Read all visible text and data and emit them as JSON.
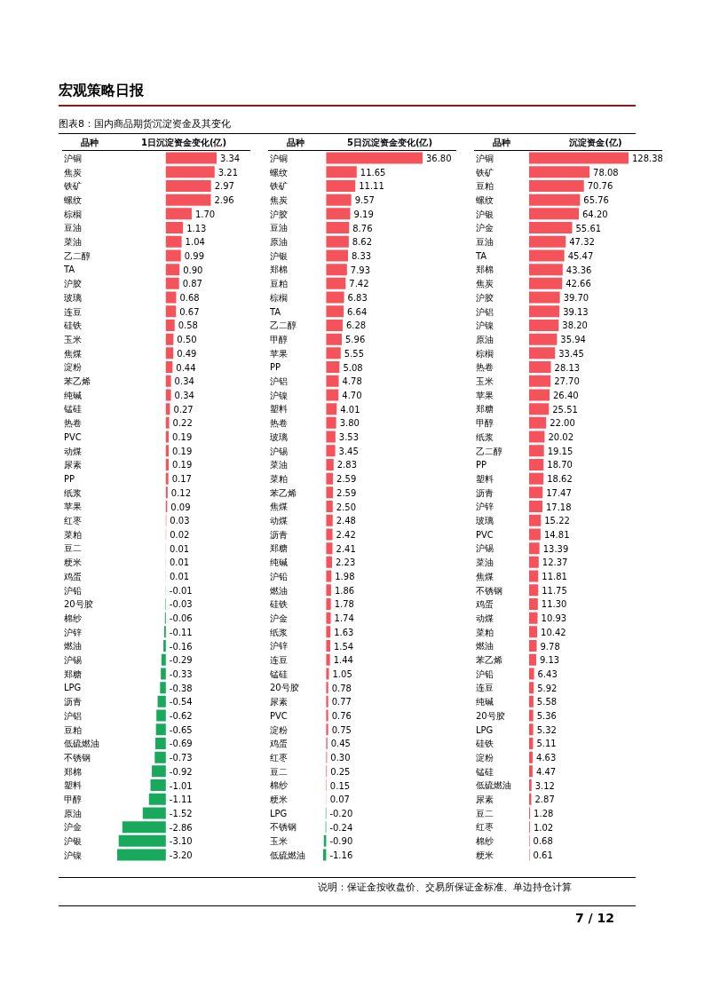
{
  "chart_data": [
    {
      "type": "bar",
      "orientation": "horizontal",
      "title": "1日沉淀资金变化(亿)",
      "ylabel": "品种",
      "annotations": [
        "宏观策略日报",
        "图表8：国内商品期货沉淀资金及其变化"
      ],
      "categories": [
        "沪铜",
        "焦炭",
        "铁矿",
        "螺纹",
        "棕榈",
        "豆油",
        "菜油",
        "乙二醇",
        "TA",
        "沪胶",
        "玻璃",
        "连豆",
        "硅铁",
        "玉米",
        "焦煤",
        "淀粉",
        "苯乙烯",
        "纯碱",
        "锰硅",
        "热卷",
        "PVC",
        "动煤",
        "尿素",
        "PP",
        "纸浆",
        "苹果",
        "红枣",
        "菜粕",
        "豆二",
        "粳米",
        "鸡蛋",
        "沪铅",
        "20号胶",
        "棉纱",
        "沪锌",
        "燃油",
        "沪锡",
        "郑糖",
        "LPG",
        "沥青",
        "沪铝",
        "豆粕",
        "低硫燃油",
        "不锈钢",
        "郑棉",
        "塑料",
        "甲醇",
        "原油",
        "沪金",
        "沪银",
        "沪镍"
      ],
      "values": [
        3.34,
        3.21,
        2.97,
        2.96,
        1.7,
        1.13,
        1.04,
        0.99,
        0.9,
        0.87,
        0.68,
        0.67,
        0.58,
        0.5,
        0.49,
        0.44,
        0.34,
        0.34,
        0.27,
        0.22,
        0.19,
        0.19,
        0.19,
        0.17,
        0.12,
        0.09,
        0.03,
        0.02,
        0.01,
        0.01,
        0.01,
        -0.01,
        -0.03,
        -0.06,
        -0.11,
        -0.16,
        -0.29,
        -0.33,
        -0.38,
        -0.54,
        -0.62,
        -0.65,
        -0.69,
        -0.73,
        -0.92,
        -1.01,
        -1.11,
        -1.52,
        -2.86,
        -3.1,
        -3.2
      ],
      "value_labels": [
        "3.34",
        "3.21",
        "2.97",
        "2.96",
        "1.70",
        "1.13",
        "1.04",
        "0.99",
        "0.90",
        "0.87",
        "0.68",
        "0.67",
        "0.58",
        "0.50",
        "0.49",
        "0.44",
        "0.34",
        "0.34",
        "0.27",
        "0.22",
        "0.19",
        "0.19",
        "0.19",
        "0.17",
        "0.12",
        "0.09",
        "0.03",
        "0.02",
        "0.01",
        "0.01",
        "0.01",
        "-0.01",
        "-0.03",
        "-0.06",
        "-0.11",
        "-0.16",
        "-0.29",
        "-0.33",
        "-0.38",
        "-0.54",
        "-0.62",
        "-0.65",
        "-0.69",
        "-0.73",
        "-0.92",
        "-1.01",
        "-1.11",
        "-1.52",
        "-2.86",
        "-3.10",
        "-3.20"
      ],
      "colors": [
        "#f4535b",
        "#f4535b",
        "#f4535b",
        "#f4535b",
        "#f4535b",
        "#f4535b",
        "#f4535b",
        "#f4535b",
        "#f4535b",
        "#f4535b",
        "#f4535b",
        "#f4535b",
        "#f4535b",
        "#f4535b",
        "#f4535b",
        "#f4535b",
        "#f4535b",
        "#f4535b",
        "#f4535b",
        "#f4535b",
        "#f4535b",
        "#f4535b",
        "#f4535b",
        "#f4535b",
        "#f4535b",
        "#f4535b",
        "#f4535b",
        "#f4535b",
        "#f4535b",
        "#f4535b",
        "#f4535b",
        "#19a95c",
        "#19a95c",
        "#19a95c",
        "#19a95c",
        "#19a95c",
        "#19a95c",
        "#19a95c",
        "#19a95c",
        "#19a95c",
        "#19a95c",
        "#19a95c",
        "#19a95c",
        "#19a95c",
        "#19a95c",
        "#19a95c",
        "#19a95c",
        "#19a95c",
        "#19a95c",
        "#19a95c",
        "#19a95c"
      ]
    },
    {
      "type": "bar",
      "orientation": "horizontal",
      "title": "5日沉淀资金变化(亿)",
      "ylabel": "品种",
      "categories": [
        "沪铜",
        "螺纹",
        "铁矿",
        "焦炭",
        "沪胶",
        "豆油",
        "原油",
        "沪银",
        "郑棉",
        "豆粕",
        "棕榈",
        "TA",
        "乙二醇",
        "甲醇",
        "苹果",
        "PP",
        "沪铝",
        "沪镍",
        "塑料",
        "热卷",
        "玻璃",
        "沪锡",
        "菜油",
        "菜粕",
        "苯乙烯",
        "焦煤",
        "动煤",
        "沥青",
        "郑糖",
        "纯碱",
        "沪铅",
        "燃油",
        "硅铁",
        "沪金",
        "纸浆",
        "沪锌",
        "连豆",
        "锰硅",
        "20号胶",
        "尿素",
        "PVC",
        "淀粉",
        "鸡蛋",
        "红枣",
        "豆二",
        "棉纱",
        "粳米",
        "LPG",
        "不锈钢",
        "玉米",
        "低硫燃油"
      ],
      "values": [
        36.8,
        11.65,
        11.11,
        9.57,
        9.19,
        8.76,
        8.62,
        8.33,
        7.93,
        7.42,
        6.83,
        6.64,
        6.28,
        5.96,
        5.55,
        5.08,
        4.78,
        4.7,
        4.01,
        3.8,
        3.53,
        3.45,
        2.83,
        2.59,
        2.59,
        2.5,
        2.48,
        2.42,
        2.41,
        2.23,
        1.98,
        1.86,
        1.78,
        1.74,
        1.63,
        1.54,
        1.44,
        1.05,
        0.78,
        0.77,
        0.76,
        0.75,
        0.45,
        0.3,
        0.25,
        0.15,
        0.07,
        -0.2,
        -0.24,
        -0.9,
        -1.16
      ],
      "value_labels": [
        "36.80",
        "11.65",
        "11.11",
        "9.57",
        "9.19",
        "8.76",
        "8.62",
        "8.33",
        "7.93",
        "7.42",
        "6.83",
        "6.64",
        "6.28",
        "5.96",
        "5.55",
        "5.08",
        "4.78",
        "4.70",
        "4.01",
        "3.80",
        "3.53",
        "3.45",
        "2.83",
        "2.59",
        "2.59",
        "2.50",
        "2.48",
        "2.42",
        "2.41",
        "2.23",
        "1.98",
        "1.86",
        "1.78",
        "1.74",
        "1.63",
        "1.54",
        "1.44",
        "1.05",
        "0.78",
        "0.77",
        "0.76",
        "0.75",
        "0.45",
        "0.30",
        "0.25",
        "0.15",
        "0.07",
        "-0.20",
        "-0.24",
        "-0.90",
        "-1.16"
      ],
      "colors": [
        "#f4535b",
        "#f4535b",
        "#f4535b",
        "#f4535b",
        "#f4535b",
        "#f4535b",
        "#f4535b",
        "#f4535b",
        "#f4535b",
        "#f4535b",
        "#f4535b",
        "#f4535b",
        "#f4535b",
        "#f4535b",
        "#f4535b",
        "#f4535b",
        "#f4535b",
        "#f4535b",
        "#f4535b",
        "#f4535b",
        "#f4535b",
        "#f4535b",
        "#f4535b",
        "#f4535b",
        "#f4535b",
        "#f4535b",
        "#f4535b",
        "#f4535b",
        "#f4535b",
        "#f4535b",
        "#f4535b",
        "#f4535b",
        "#f4535b",
        "#f4535b",
        "#f4535b",
        "#f4535b",
        "#f4535b",
        "#f4535b",
        "#f4535b",
        "#f4535b",
        "#f4535b",
        "#f4535b",
        "#f4535b",
        "#f4535b",
        "#f4535b",
        "#f4535b",
        "#f4535b",
        "#19a95c",
        "#19a95c",
        "#19a95c",
        "#19a95c"
      ]
    },
    {
      "type": "bar",
      "orientation": "horizontal",
      "title": "沉淀资金(亿)",
      "ylabel": "品种",
      "annotations": [
        "说明：保证金按收盘价、交易所保证金标准、单边持仓计算",
        "7 / 12"
      ],
      "categories": [
        "沪铜",
        "铁矿",
        "豆粕",
        "螺纹",
        "沪银",
        "沪金",
        "豆油",
        "TA",
        "郑棉",
        "焦炭",
        "沪胶",
        "沪铝",
        "沪镍",
        "原油",
        "棕榈",
        "热卷",
        "玉米",
        "苹果",
        "郑糖",
        "甲醇",
        "纸浆",
        "乙二醇",
        "PP",
        "塑料",
        "沥青",
        "沪锌",
        "玻璃",
        "PVC",
        "沪锡",
        "菜油",
        "焦煤",
        "不锈钢",
        "鸡蛋",
        "动煤",
        "菜粕",
        "燃油",
        "苯乙烯",
        "沪铅",
        "连豆",
        "纯碱",
        "20号胶",
        "LPG",
        "硅铁",
        "淀粉",
        "锰硅",
        "低硫燃油",
        "尿素",
        "豆二",
        "红枣",
        "棉纱",
        "粳米"
      ],
      "values": [
        128.38,
        78.08,
        70.76,
        65.76,
        64.2,
        55.61,
        47.32,
        45.47,
        43.36,
        42.66,
        39.7,
        39.13,
        38.2,
        35.94,
        33.45,
        28.13,
        27.7,
        26.4,
        25.51,
        22.0,
        20.02,
        19.15,
        18.7,
        18.62,
        17.47,
        17.18,
        15.22,
        14.81,
        13.39,
        12.37,
        11.81,
        11.75,
        11.3,
        10.93,
        10.42,
        9.78,
        9.13,
        6.43,
        5.92,
        5.58,
        5.36,
        5.32,
        5.11,
        4.63,
        4.47,
        3.12,
        2.87,
        1.28,
        1.02,
        0.68,
        0.61
      ],
      "value_labels": [
        "128.38",
        "78.08",
        "70.76",
        "65.76",
        "64.20",
        "55.61",
        "47.32",
        "45.47",
        "43.36",
        "42.66",
        "39.70",
        "39.13",
        "38.20",
        "35.94",
        "33.45",
        "28.13",
        "27.70",
        "26.40",
        "25.51",
        "22.00",
        "20.02",
        "19.15",
        "18.70",
        "18.62",
        "17.47",
        "17.18",
        "15.22",
        "14.81",
        "13.39",
        "12.37",
        "11.81",
        "11.75",
        "11.30",
        "10.93",
        "10.42",
        "9.78",
        "9.13",
        "6.43",
        "5.92",
        "5.58",
        "5.36",
        "5.32",
        "5.11",
        "4.63",
        "4.47",
        "3.12",
        "2.87",
        "1.28",
        "1.02",
        "0.68",
        "0.61"
      ],
      "colors": [
        "#f4535b",
        "#f4535b",
        "#f4535b",
        "#f4535b",
        "#f4535b",
        "#f4535b",
        "#f4535b",
        "#f4535b",
        "#f4535b",
        "#f4535b",
        "#f4535b",
        "#f4535b",
        "#f4535b",
        "#f4535b",
        "#f4535b",
        "#f4535b",
        "#f4535b",
        "#f4535b",
        "#f4535b",
        "#f4535b",
        "#f4535b",
        "#f4535b",
        "#f4535b",
        "#f4535b",
        "#f4535b",
        "#f4535b",
        "#f4535b",
        "#f4535b",
        "#f4535b",
        "#f4535b",
        "#f4535b",
        "#f4535b",
        "#f4535b",
        "#f4535b",
        "#f4535b",
        "#f4535b",
        "#f4535b",
        "#f4535b",
        "#f4535b",
        "#f4535b",
        "#f4535b",
        "#f4535b",
        "#f4535b",
        "#f4535b",
        "#f4535b",
        "#f4535b",
        "#f4535b",
        "#f4535b",
        "#f4535b",
        "#f4535b",
        "#f4535b"
      ]
    }
  ]
}
